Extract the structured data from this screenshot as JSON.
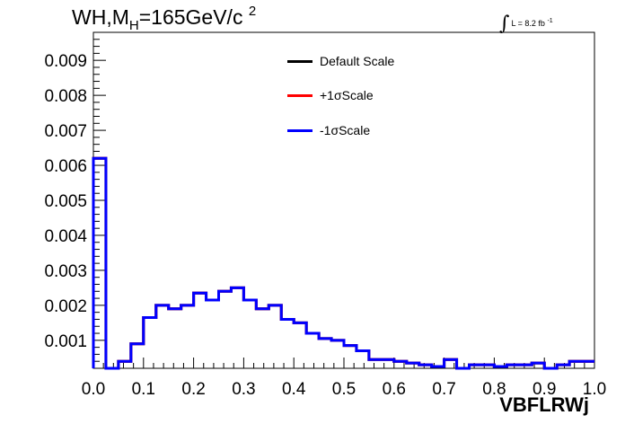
{
  "title": {
    "main": "WH,M",
    "sub": "H",
    "rest": "=165GeV/c",
    "sup": "2"
  },
  "luminosity": {
    "text": "L = 8.2 fb",
    "exponent": "-1"
  },
  "legend": [
    {
      "label": "Default Scale",
      "color": "#000000"
    },
    {
      "label": "+1σScale",
      "color": "#ff0000"
    },
    {
      "label": "-1σScale",
      "color": "#0000ff"
    }
  ],
  "chart_data": {
    "type": "line",
    "style": "step-histogram",
    "title": "WH,MH=165GeV/c 2",
    "xlabel": "VBFLRWj",
    "ylabel": "",
    "xlim": [
      0.0,
      1.0
    ],
    "ylim": [
      0.0002,
      0.0098
    ],
    "x_ticks": [
      "0.0",
      "0.1",
      "0.2",
      "0.3",
      "0.4",
      "0.5",
      "0.6",
      "0.7",
      "0.8",
      "0.9",
      "1.0"
    ],
    "y_ticks": [
      "0.001",
      "0.002",
      "0.003",
      "0.004",
      "0.005",
      "0.006",
      "0.007",
      "0.008",
      "0.009"
    ],
    "bin_edges": [
      0.0,
      0.025,
      0.05,
      0.075,
      0.1,
      0.125,
      0.15,
      0.175,
      0.2,
      0.225,
      0.25,
      0.275,
      0.3,
      0.325,
      0.35,
      0.375,
      0.4,
      0.425,
      0.45,
      0.475,
      0.5,
      0.525,
      0.55,
      0.575,
      0.6,
      0.625,
      0.65,
      0.675,
      0.7,
      0.725,
      0.75,
      0.775,
      0.8,
      0.825,
      0.85,
      0.875,
      0.9,
      0.925,
      0.95,
      0.975,
      1.0
    ],
    "series": [
      {
        "name": "Default Scale",
        "color": "#000000",
        "values": [
          0.0062,
          0.0002,
          0.0004,
          0.0009,
          0.00165,
          0.002,
          0.0019,
          0.002,
          0.00235,
          0.00215,
          0.0024,
          0.0025,
          0.00215,
          0.0019,
          0.002,
          0.0016,
          0.0015,
          0.0012,
          0.00105,
          0.001,
          0.00085,
          0.0007,
          0.00045,
          0.00045,
          0.0004,
          0.00035,
          0.0003,
          0.00025,
          0.00045,
          0.0002,
          0.0003,
          0.0003,
          0.00025,
          0.0003,
          0.0003,
          0.00035,
          0.0002,
          0.0003,
          0.0004,
          0.0004
        ]
      },
      {
        "name": "+1σScale",
        "color": "#ff0000",
        "values": [
          0.0062,
          0.0002,
          0.0004,
          0.0009,
          0.00165,
          0.002,
          0.0019,
          0.002,
          0.00235,
          0.00215,
          0.0024,
          0.0025,
          0.00215,
          0.0019,
          0.002,
          0.0016,
          0.0015,
          0.0012,
          0.00105,
          0.001,
          0.00085,
          0.0007,
          0.00045,
          0.00045,
          0.0004,
          0.00035,
          0.0003,
          0.00025,
          0.00045,
          0.0002,
          0.0003,
          0.0003,
          0.00025,
          0.0003,
          0.0003,
          0.00035,
          0.0002,
          0.0003,
          0.0004,
          0.0004
        ]
      },
      {
        "name": "-1σScale",
        "color": "#0000ff",
        "values": [
          0.0062,
          0.0002,
          0.0004,
          0.0009,
          0.00165,
          0.002,
          0.0019,
          0.002,
          0.00235,
          0.00215,
          0.0024,
          0.0025,
          0.00215,
          0.0019,
          0.002,
          0.0016,
          0.0015,
          0.0012,
          0.00105,
          0.001,
          0.00085,
          0.0007,
          0.00045,
          0.00045,
          0.0004,
          0.00035,
          0.0003,
          0.00025,
          0.00045,
          0.0002,
          0.0003,
          0.0003,
          0.00025,
          0.0003,
          0.0003,
          0.00035,
          0.0002,
          0.0003,
          0.0004,
          0.0004
        ]
      }
    ],
    "legend_position": "top-right",
    "grid": false
  }
}
